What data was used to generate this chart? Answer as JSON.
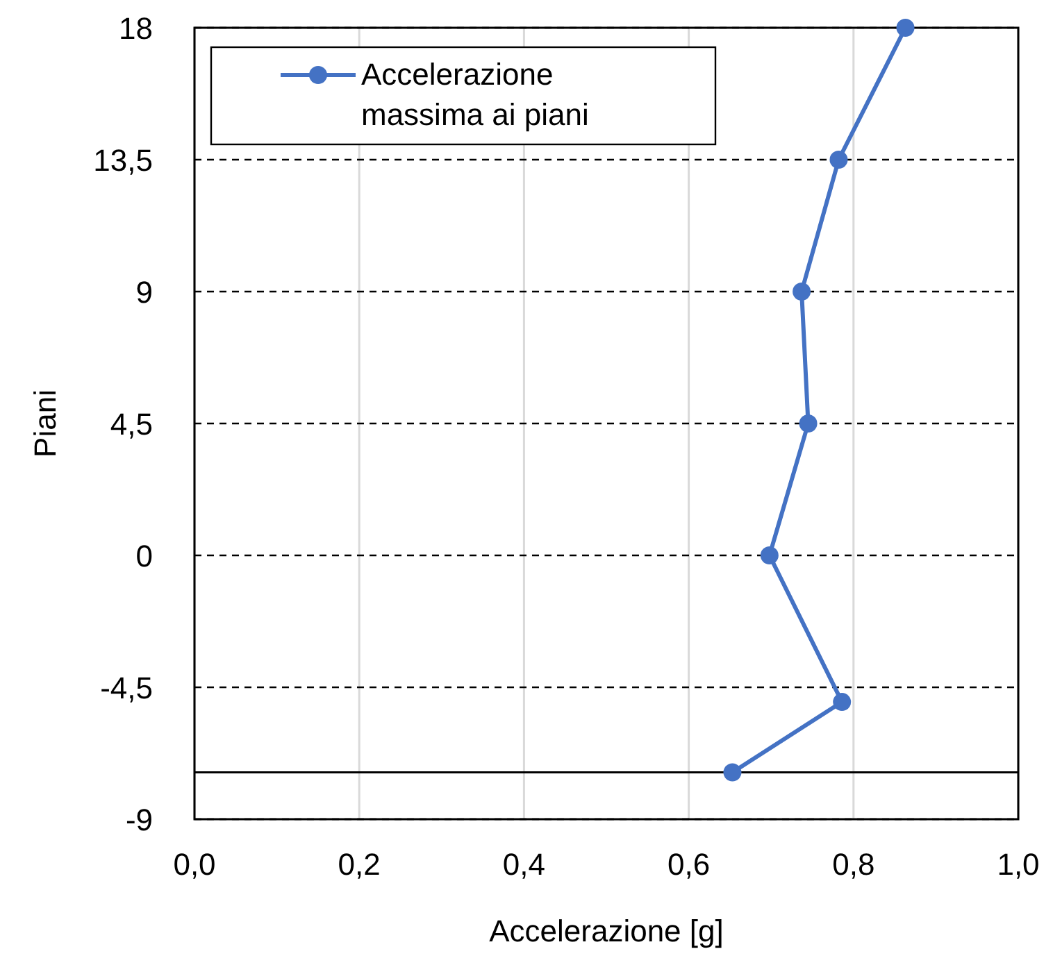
{
  "chart_data": {
    "type": "line",
    "xlabel": "Accelerazione [g]",
    "ylabel": "Piani",
    "x": [
      0.863,
      0.782,
      0.737,
      0.745,
      0.698,
      0.786,
      0.653
    ],
    "series": [
      {
        "name": "Accelerazione massima ai piani",
        "color": "#4472c4",
        "values": [
          18,
          13.5,
          9,
          4.5,
          0,
          -5,
          -7.4
        ]
      }
    ],
    "xlim": [
      0,
      1
    ],
    "xticks": [
      {
        "value": 0,
        "label": "0,0"
      },
      {
        "value": 0.2,
        "label": "0,2"
      },
      {
        "value": 0.4,
        "label": "0,4"
      },
      {
        "value": 0.6,
        "label": "0,6"
      },
      {
        "value": 0.8,
        "label": "0,8"
      },
      {
        "value": 1,
        "label": "1,0"
      }
    ],
    "ylim": [
      -9,
      18
    ],
    "yticks": [
      -9,
      {
        "value": -4.5,
        "label": "-4,5"
      },
      0,
      {
        "value": 4.5,
        "label": "4,5"
      },
      9,
      {
        "value": 13.5,
        "label": "13,5"
      },
      18
    ],
    "grid": true,
    "legend": "top left",
    "marker": "circle",
    "line_style": "solid",
    "ref_lines": [
      {
        "axis": "y",
        "value": -7.4,
        "label": null,
        "color": "#000000"
      }
    ]
  }
}
